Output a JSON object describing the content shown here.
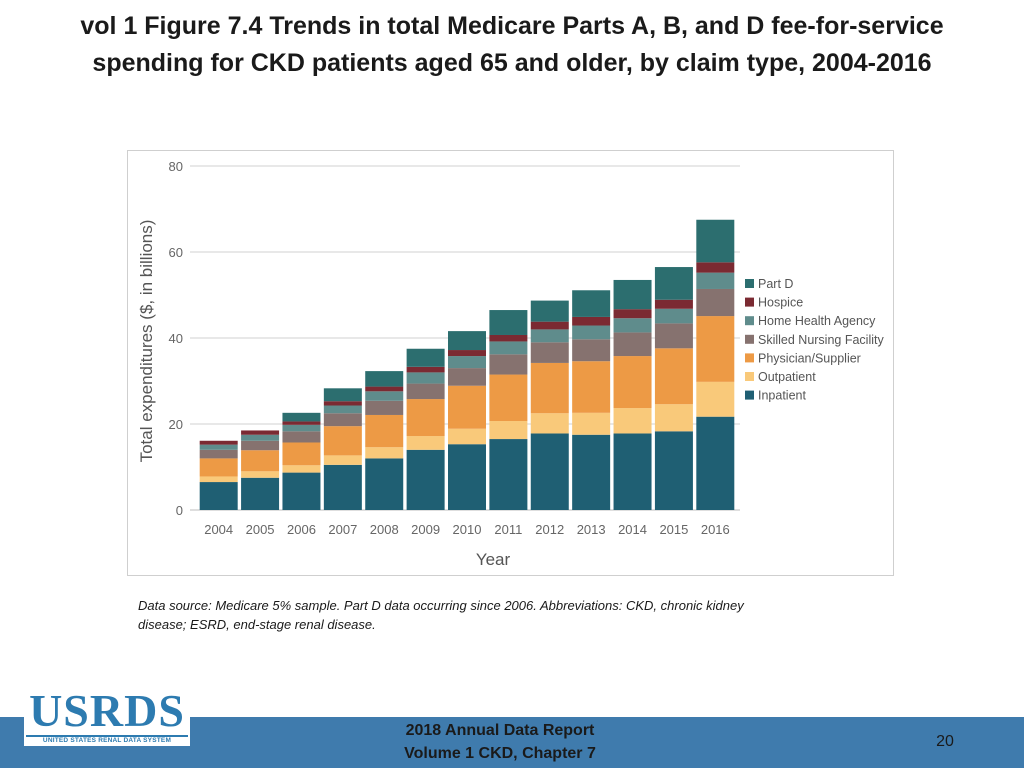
{
  "slide": {
    "title_line1": "vol 1 Figure 7.4 Trends in total Medicare Parts A, B, and D fee-for-service",
    "title_line2": "spending for CKD patients aged 65 and older, by claim type, 2004-2016",
    "footnote_line1": "Data source: Medicare 5% sample. Part D data occurring since 2006. Abbreviations: CKD, chronic kidney",
    "footnote_line2": "disease; ESRD, end-stage renal disease.",
    "logo_text": "USRDS",
    "logo_subtext": "UNITED STATES RENAL DATA SYSTEM",
    "report_line1": "2018 Annual Data Report",
    "report_line2": "Volume 1 CKD, Chapter 7",
    "page_number": "20"
  },
  "chart_data": {
    "type": "bar",
    "stacked": true,
    "title": "",
    "xlabel": "Year",
    "ylabel": "Total expenditures ($, in billions)",
    "ylim": [
      0,
      80
    ],
    "yticks": [
      0,
      20,
      40,
      60,
      80
    ],
    "grid": true,
    "legend_position": "right",
    "categories": [
      "2004",
      "2005",
      "2006",
      "2007",
      "2008",
      "2009",
      "2010",
      "2011",
      "2012",
      "2013",
      "2014",
      "2015",
      "2016"
    ],
    "series": [
      {
        "name": "Inpatient",
        "color": "#1f5f73",
        "values": [
          6.5,
          7.5,
          8.7,
          10.5,
          12.0,
          14.0,
          15.3,
          16.5,
          17.8,
          17.5,
          17.8,
          18.3,
          21.7
        ]
      },
      {
        "name": "Outpatient",
        "color": "#f9c97a",
        "values": [
          1.3,
          1.5,
          1.7,
          2.2,
          2.6,
          3.2,
          3.6,
          4.2,
          4.7,
          5.1,
          5.9,
          6.3,
          8.1
        ]
      },
      {
        "name": "Physician/Supplier",
        "color": "#ed9a45",
        "values": [
          4.2,
          4.9,
          5.3,
          6.8,
          7.5,
          8.6,
          10.0,
          10.8,
          11.7,
          12.0,
          12.1,
          13.0,
          15.3
        ]
      },
      {
        "name": "Skilled Nursing Facility",
        "color": "#86726f",
        "values": [
          2.0,
          2.2,
          2.6,
          3.0,
          3.3,
          3.6,
          4.1,
          4.7,
          4.8,
          5.1,
          5.5,
          5.8,
          6.3
        ]
      },
      {
        "name": "Home Health Agency",
        "color": "#5f8c8c",
        "values": [
          1.2,
          1.4,
          1.5,
          1.8,
          2.2,
          2.6,
          2.8,
          3.0,
          3.0,
          3.2,
          3.3,
          3.4,
          3.8
        ]
      },
      {
        "name": "Hospice",
        "color": "#7b2a32",
        "values": [
          0.9,
          1.0,
          0.8,
          1.0,
          1.1,
          1.3,
          1.4,
          1.5,
          1.8,
          2.0,
          2.1,
          2.1,
          2.4
        ]
      },
      {
        "name": "Part D",
        "color": "#2c6e6f",
        "values": [
          0,
          0,
          2.0,
          3.0,
          3.6,
          4.2,
          4.4,
          5.8,
          4.9,
          6.2,
          6.8,
          7.6,
          9.9
        ]
      }
    ]
  }
}
